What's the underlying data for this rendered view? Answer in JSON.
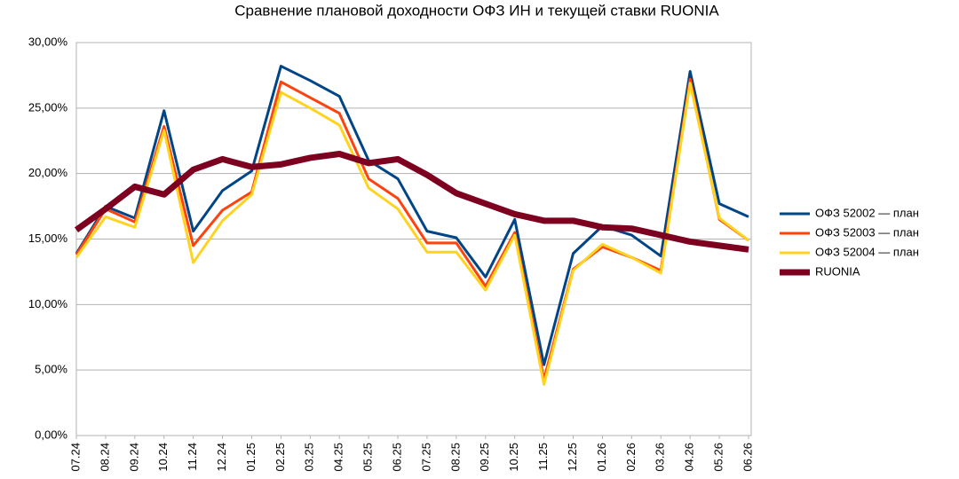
{
  "chart_data": {
    "type": "line",
    "title": "Сравнение плановой доходности ОФЗ ИН и текущей ставки RUONIA",
    "categories": [
      "07.24",
      "08.24",
      "09.24",
      "10.24",
      "11.24",
      "12.24",
      "01.25",
      "02.25",
      "03.25",
      "04.25",
      "05.25",
      "06.25",
      "07.25",
      "08.25",
      "09.25",
      "10.25",
      "11.25",
      "12.25",
      "01.26",
      "02.26",
      "03.26",
      "04.26",
      "05.26",
      "06.26"
    ],
    "series": [
      {
        "name": "ОФЗ 52002 — план",
        "color": "#004586",
        "values": [
          13.9,
          17.5,
          16.6,
          24.8,
          15.6,
          18.7,
          20.2,
          28.2,
          27.1,
          25.9,
          21.0,
          19.6,
          15.6,
          15.1,
          12.1,
          16.5,
          5.4,
          13.9,
          16.0,
          15.3,
          13.7,
          27.8,
          17.7,
          16.7
        ]
      },
      {
        "name": "ОФЗ 52003 — план",
        "color": "#ff420e",
        "values": [
          13.8,
          17.3,
          16.3,
          23.6,
          14.5,
          17.2,
          18.6,
          27.0,
          25.8,
          24.6,
          19.6,
          18.1,
          14.7,
          14.7,
          11.4,
          15.5,
          4.3,
          12.7,
          14.4,
          13.6,
          12.6,
          27.2,
          16.5,
          14.9
        ]
      },
      {
        "name": "ОФЗ 52004 — план",
        "color": "#ffd320",
        "values": [
          13.6,
          16.7,
          15.9,
          23.3,
          13.2,
          16.4,
          18.4,
          26.2,
          25.0,
          23.7,
          18.9,
          17.3,
          14.0,
          14.0,
          11.1,
          15.3,
          3.9,
          12.6,
          14.6,
          13.6,
          12.4,
          26.9,
          16.6,
          14.9
        ]
      },
      {
        "name": "RUONIA",
        "color": "#7e0021",
        "values": [
          15.7,
          17.3,
          19.0,
          18.4,
          20.3,
          21.1,
          20.5,
          20.7,
          21.2,
          21.5,
          20.8,
          21.1,
          19.9,
          18.5,
          17.7,
          16.9,
          16.4,
          16.4,
          15.9,
          15.8,
          15.3,
          14.8,
          14.5,
          14.2
        ]
      }
    ],
    "ylim": [
      0,
      30
    ],
    "yticks": [
      {
        "value": 0,
        "label": "0,00%"
      },
      {
        "value": 5,
        "label": "5,00%"
      },
      {
        "value": 10,
        "label": "10,00%"
      },
      {
        "value": 15,
        "label": "15,00%"
      },
      {
        "value": 20,
        "label": "20,00%"
      },
      {
        "value": 25,
        "label": "25,00%"
      },
      {
        "value": 30,
        "label": "30,00%"
      }
    ],
    "grid": true
  }
}
